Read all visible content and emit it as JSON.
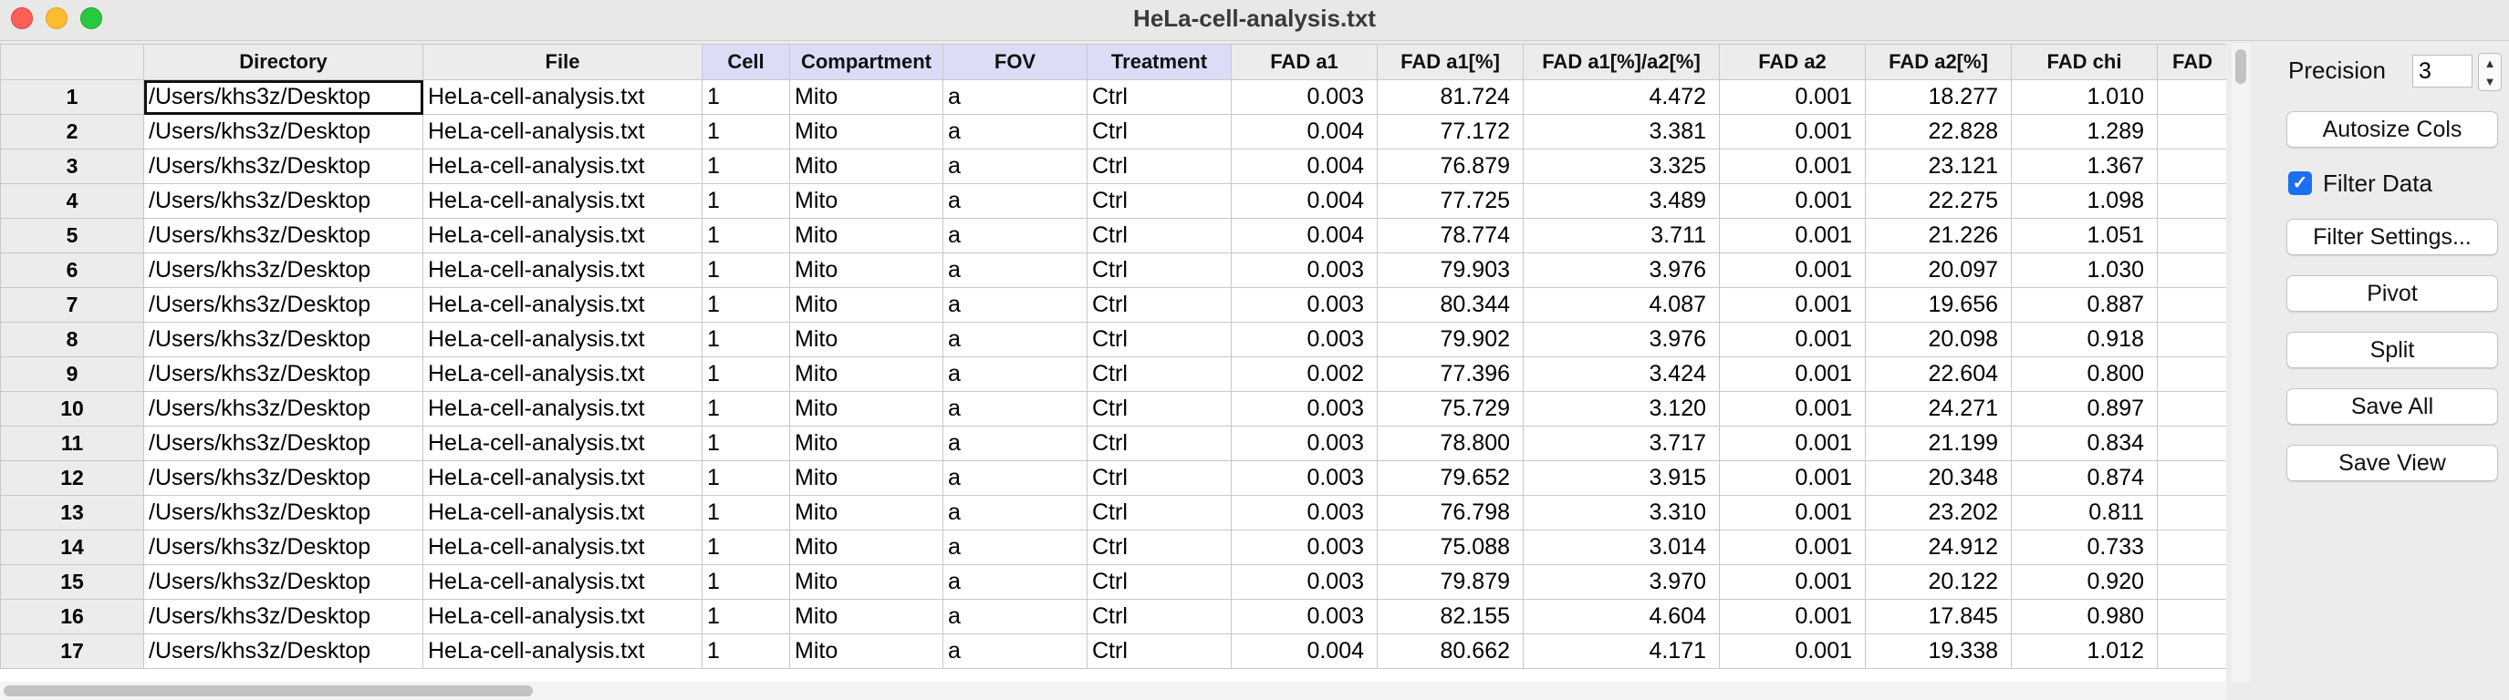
{
  "window": {
    "title": "HeLa-cell-analysis.txt"
  },
  "table": {
    "columns": [
      {
        "label": "Directory",
        "categorical": false
      },
      {
        "label": "File",
        "categorical": false
      },
      {
        "label": "Cell",
        "categorical": true
      },
      {
        "label": "Compartment",
        "categorical": true
      },
      {
        "label": "FOV",
        "categorical": true
      },
      {
        "label": "Treatment",
        "categorical": true
      },
      {
        "label": "FAD a1",
        "categorical": false
      },
      {
        "label": "FAD a1[%]",
        "categorical": false
      },
      {
        "label": "FAD a1[%]/a2[%]",
        "categorical": false
      },
      {
        "label": "FAD a2",
        "categorical": false
      },
      {
        "label": "FAD a2[%]",
        "categorical": false
      },
      {
        "label": "FAD chi",
        "categorical": false
      },
      {
        "label": "FAD",
        "categorical": false
      }
    ],
    "rows": [
      {
        "n": "1",
        "cells": [
          "/Users/khs3z/Desktop",
          "HeLa-cell-analysis.txt",
          "1",
          "Mito",
          "a",
          "Ctrl",
          "0.003",
          "81.724",
          "4.472",
          "0.001",
          "18.277",
          "1.010",
          ""
        ]
      },
      {
        "n": "2",
        "cells": [
          "/Users/khs3z/Desktop",
          "HeLa-cell-analysis.txt",
          "1",
          "Mito",
          "a",
          "Ctrl",
          "0.004",
          "77.172",
          "3.381",
          "0.001",
          "22.828",
          "1.289",
          ""
        ]
      },
      {
        "n": "3",
        "cells": [
          "/Users/khs3z/Desktop",
          "HeLa-cell-analysis.txt",
          "1",
          "Mito",
          "a",
          "Ctrl",
          "0.004",
          "76.879",
          "3.325",
          "0.001",
          "23.121",
          "1.367",
          ""
        ]
      },
      {
        "n": "4",
        "cells": [
          "/Users/khs3z/Desktop",
          "HeLa-cell-analysis.txt",
          "1",
          "Mito",
          "a",
          "Ctrl",
          "0.004",
          "77.725",
          "3.489",
          "0.001",
          "22.275",
          "1.098",
          ""
        ]
      },
      {
        "n": "5",
        "cells": [
          "/Users/khs3z/Desktop",
          "HeLa-cell-analysis.txt",
          "1",
          "Mito",
          "a",
          "Ctrl",
          "0.004",
          "78.774",
          "3.711",
          "0.001",
          "21.226",
          "1.051",
          ""
        ]
      },
      {
        "n": "6",
        "cells": [
          "/Users/khs3z/Desktop",
          "HeLa-cell-analysis.txt",
          "1",
          "Mito",
          "a",
          "Ctrl",
          "0.003",
          "79.903",
          "3.976",
          "0.001",
          "20.097",
          "1.030",
          ""
        ]
      },
      {
        "n": "7",
        "cells": [
          "/Users/khs3z/Desktop",
          "HeLa-cell-analysis.txt",
          "1",
          "Mito",
          "a",
          "Ctrl",
          "0.003",
          "80.344",
          "4.087",
          "0.001",
          "19.656",
          "0.887",
          ""
        ]
      },
      {
        "n": "8",
        "cells": [
          "/Users/khs3z/Desktop",
          "HeLa-cell-analysis.txt",
          "1",
          "Mito",
          "a",
          "Ctrl",
          "0.003",
          "79.902",
          "3.976",
          "0.001",
          "20.098",
          "0.918",
          ""
        ]
      },
      {
        "n": "9",
        "cells": [
          "/Users/khs3z/Desktop",
          "HeLa-cell-analysis.txt",
          "1",
          "Mito",
          "a",
          "Ctrl",
          "0.002",
          "77.396",
          "3.424",
          "0.001",
          "22.604",
          "0.800",
          ""
        ]
      },
      {
        "n": "10",
        "cells": [
          "/Users/khs3z/Desktop",
          "HeLa-cell-analysis.txt",
          "1",
          "Mito",
          "a",
          "Ctrl",
          "0.003",
          "75.729",
          "3.120",
          "0.001",
          "24.271",
          "0.897",
          ""
        ]
      },
      {
        "n": "11",
        "cells": [
          "/Users/khs3z/Desktop",
          "HeLa-cell-analysis.txt",
          "1",
          "Mito",
          "a",
          "Ctrl",
          "0.003",
          "78.800",
          "3.717",
          "0.001",
          "21.199",
          "0.834",
          ""
        ]
      },
      {
        "n": "12",
        "cells": [
          "/Users/khs3z/Desktop",
          "HeLa-cell-analysis.txt",
          "1",
          "Mito",
          "a",
          "Ctrl",
          "0.003",
          "79.652",
          "3.915",
          "0.001",
          "20.348",
          "0.874",
          ""
        ]
      },
      {
        "n": "13",
        "cells": [
          "/Users/khs3z/Desktop",
          "HeLa-cell-analysis.txt",
          "1",
          "Mito",
          "a",
          "Ctrl",
          "0.003",
          "76.798",
          "3.310",
          "0.001",
          "23.202",
          "0.811",
          ""
        ]
      },
      {
        "n": "14",
        "cells": [
          "/Users/khs3z/Desktop",
          "HeLa-cell-analysis.txt",
          "1",
          "Mito",
          "a",
          "Ctrl",
          "0.003",
          "75.088",
          "3.014",
          "0.001",
          "24.912",
          "0.733",
          ""
        ]
      },
      {
        "n": "15",
        "cells": [
          "/Users/khs3z/Desktop",
          "HeLa-cell-analysis.txt",
          "1",
          "Mito",
          "a",
          "Ctrl",
          "0.003",
          "79.879",
          "3.970",
          "0.001",
          "20.122",
          "0.920",
          ""
        ]
      },
      {
        "n": "16",
        "cells": [
          "/Users/khs3z/Desktop",
          "HeLa-cell-analysis.txt",
          "1",
          "Mito",
          "a",
          "Ctrl",
          "0.003",
          "82.155",
          "4.604",
          "0.001",
          "17.845",
          "0.980",
          ""
        ]
      },
      {
        "n": "17",
        "cells": [
          "/Users/khs3z/Desktop",
          "HeLa-cell-analysis.txt",
          "1",
          "Mito",
          "a",
          "Ctrl",
          "0.004",
          "80.662",
          "4.171",
          "0.001",
          "19.338",
          "1.012",
          ""
        ]
      }
    ],
    "selected_cell": {
      "row": 0,
      "col": 0
    }
  },
  "sidebar": {
    "precision_label": "Precision",
    "precision_value": "3",
    "autosize_label": "Autosize Cols",
    "filter_data_label": "Filter Data",
    "filter_data_checked": true,
    "filter_settings_label": "Filter Settings...",
    "pivot_label": "Pivot",
    "split_label": "Split",
    "save_all_label": "Save All",
    "save_view_label": "Save View"
  },
  "colors": {
    "categorical_header": "#dcdcf7",
    "accent": "#1d6ff2",
    "close": "#fe5f57",
    "minimize": "#febc2e",
    "maximize": "#28c840"
  },
  "icons": {
    "close": "close-button-icon",
    "minimize": "minimize-button-icon",
    "maximize": "zoom-button-icon",
    "stepper_up": "chevron-up-icon",
    "stepper_down": "chevron-down-icon",
    "checkbox": "checkmark-icon"
  }
}
